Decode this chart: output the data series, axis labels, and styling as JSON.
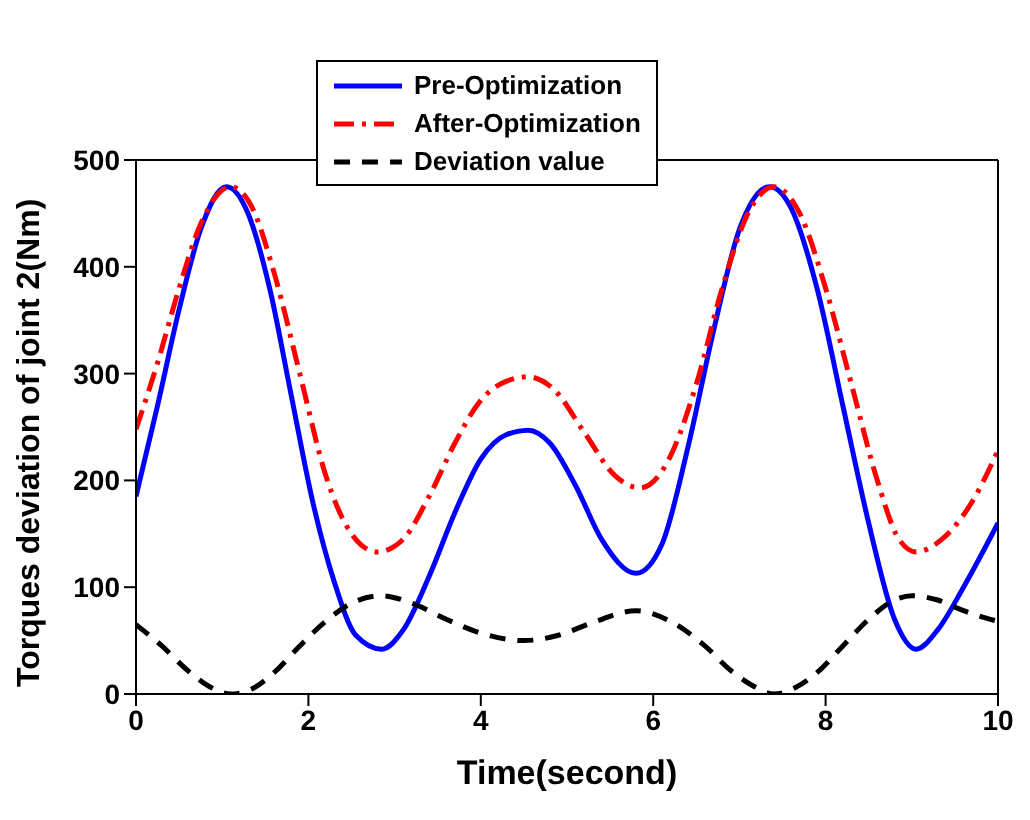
{
  "chart_data": {
    "type": "line",
    "xlabel": "Time(second)",
    "ylabel": "Torques deviation of joint 2(Nm)",
    "xlim": [
      0,
      10
    ],
    "xticks": [
      0,
      2,
      4,
      6,
      8,
      10
    ],
    "ylim": [
      0,
      500
    ],
    "yticks": [
      0,
      100,
      200,
      300,
      400,
      500
    ],
    "grid": false,
    "legend": "top",
    "marker": "none",
    "series": [
      {
        "name": "Pre-Optimization",
        "color": "#0000ff",
        "line_style": "solid",
        "x": [
          0,
          0.25,
          0.5,
          0.75,
          1.05,
          1.3,
          1.55,
          1.8,
          2.05,
          2.3,
          2.55,
          2.85,
          3.1,
          3.4,
          3.7,
          4.0,
          4.3,
          4.55,
          4.8,
          5.1,
          5.4,
          5.8,
          6.1,
          6.4,
          6.7,
          7.0,
          7.35,
          7.6,
          7.9,
          8.2,
          8.5,
          8.8,
          9.05,
          9.3,
          9.6,
          10
        ],
        "values": [
          185,
          270,
          360,
          435,
          475,
          450,
          380,
          280,
          180,
          105,
          55,
          42,
          60,
          110,
          170,
          220,
          243,
          247,
          235,
          195,
          145,
          113,
          140,
          230,
          340,
          435,
          475,
          455,
          380,
          270,
          160,
          70,
          42,
          60,
          100,
          160
        ]
      },
      {
        "name": "After-Optimization",
        "color": "#ff0000",
        "line_style": "dashdot",
        "x": [
          0,
          0.25,
          0.5,
          0.75,
          1.1,
          1.35,
          1.6,
          1.9,
          2.2,
          2.5,
          2.8,
          3.1,
          3.4,
          3.7,
          4.0,
          4.3,
          4.55,
          4.85,
          5.2,
          5.55,
          5.85,
          6.15,
          6.5,
          6.8,
          7.1,
          7.4,
          7.7,
          8.0,
          8.3,
          8.6,
          8.85,
          9.05,
          9.35,
          9.7,
          10
        ],
        "values": [
          248,
          310,
          380,
          440,
          475,
          455,
          395,
          300,
          205,
          150,
          133,
          145,
          185,
          235,
          275,
          293,
          297,
          285,
          245,
          205,
          193,
          215,
          290,
          380,
          450,
          475,
          450,
          380,
          290,
          200,
          145,
          133,
          145,
          180,
          228
        ]
      },
      {
        "name": "Deviation value",
        "color": "#000000",
        "line_style": "dashed",
        "x": [
          0,
          0.3,
          0.6,
          0.85,
          1.1,
          1.35,
          1.6,
          1.9,
          2.2,
          2.5,
          2.85,
          3.2,
          3.6,
          4.0,
          4.5,
          4.9,
          5.3,
          5.8,
          6.2,
          6.6,
          6.9,
          7.15,
          7.4,
          7.65,
          7.9,
          8.2,
          8.5,
          8.8,
          9.0,
          9.3,
          9.6,
          10
        ],
        "values": [
          65,
          45,
          22,
          7,
          0,
          5,
          20,
          45,
          68,
          85,
          92,
          85,
          70,
          57,
          50,
          55,
          67,
          78,
          68,
          45,
          22,
          8,
          0,
          6,
          20,
          45,
          70,
          88,
          92,
          88,
          78,
          68
        ]
      }
    ]
  }
}
